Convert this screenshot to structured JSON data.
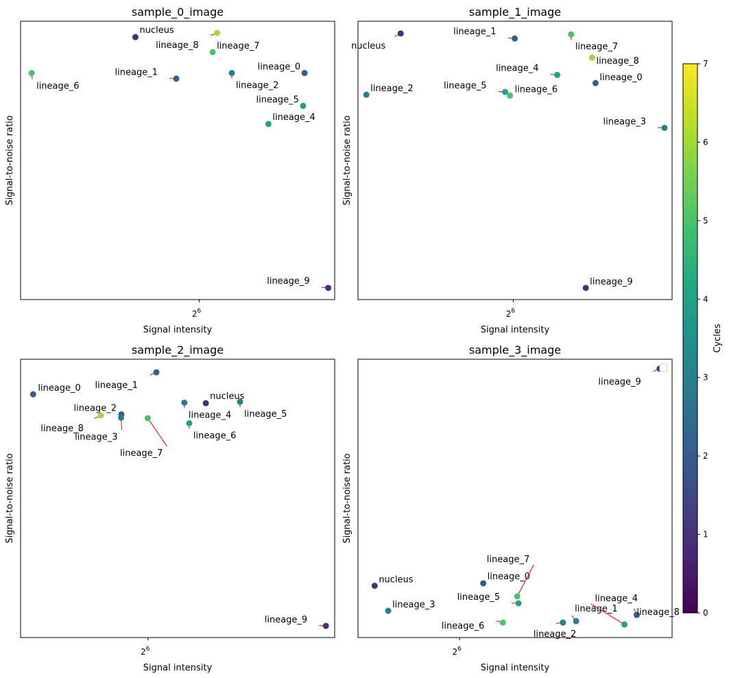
{
  "colorbar": {
    "label": "Cycles",
    "min": 0,
    "max": 7,
    "ticks": [
      "0",
      "1",
      "2",
      "3",
      "4",
      "5",
      "6",
      "7"
    ],
    "colormap": "viridis"
  },
  "chart_data": [
    {
      "type": "scatter",
      "title": "sample_0_image",
      "xlabel": "Signal intensity",
      "ylabel": "Signal-to-noise ratio",
      "xscale": "log2",
      "xlim": [
        23,
        139
      ],
      "ylim": [
        0,
        100
      ],
      "xticks": [
        {
          "value": 64,
          "base": "2",
          "exp": "6"
        }
      ],
      "legend": false,
      "points": [
        {
          "label": "nucleus",
          "x": 44.4,
          "y": 94.3,
          "cycle": 1
        },
        {
          "label": "lineage_0",
          "x": 117,
          "y": 81.4,
          "cycle": 2
        },
        {
          "label": "lineage_1",
          "x": 56.1,
          "y": 79.4,
          "cycle": 2
        },
        {
          "label": "lineage_2",
          "x": 77.1,
          "y": 81.4,
          "cycle": 3
        },
        {
          "label": "lineage_4",
          "x": 95.1,
          "y": 63.1,
          "cycle": 4
        },
        {
          "label": "lineage_5",
          "x": 116,
          "y": 69.6,
          "cycle": 4
        },
        {
          "label": "lineage_6",
          "x": 24.5,
          "y": 81.4,
          "cycle": 5
        },
        {
          "label": "lineage_7",
          "x": 69.1,
          "y": 88.9,
          "cycle": 5
        },
        {
          "label": "lineage_8",
          "x": 70.9,
          "y": 95.8,
          "cycle": 6
        },
        {
          "label": "lineage_9",
          "x": 134,
          "y": 4.2,
          "cycle": 1
        }
      ]
    },
    {
      "type": "scatter",
      "title": "sample_1_image",
      "xlabel": "Signal intensity",
      "ylabel": "Signal-to-noise ratio",
      "xscale": "log2",
      "xlim": [
        33,
        126
      ],
      "ylim": [
        0,
        100
      ],
      "xticks": [
        {
          "value": 64,
          "base": "2",
          "exp": "6"
        }
      ],
      "legend": false,
      "points": [
        {
          "label": "nucleus",
          "x": 39.6,
          "y": 95.6,
          "cycle": 1
        },
        {
          "label": "lineage_0",
          "x": 90.9,
          "y": 77.8,
          "cycle": 2
        },
        {
          "label": "lineage_1",
          "x": 64.4,
          "y": 93.8,
          "cycle": 2
        },
        {
          "label": "lineage_2",
          "x": 34.2,
          "y": 73.6,
          "cycle": 3
        },
        {
          "label": "lineage_3",
          "x": 122,
          "y": 61.7,
          "cycle": 3
        },
        {
          "label": "lineage_4",
          "x": 77.2,
          "y": 80.7,
          "cycle": 4
        },
        {
          "label": "lineage_5",
          "x": 61.8,
          "y": 74.6,
          "cycle": 4
        },
        {
          "label": "lineage_6",
          "x": 63.1,
          "y": 73.3,
          "cycle": 5
        },
        {
          "label": "lineage_7",
          "x": 81.9,
          "y": 95.3,
          "cycle": 5
        },
        {
          "label": "lineage_8",
          "x": 89.6,
          "y": 86.9,
          "cycle": 6
        },
        {
          "label": "lineage_9",
          "x": 87.2,
          "y": 4.2,
          "cycle": 1
        }
      ]
    },
    {
      "type": "scatter",
      "title": "sample_2_image",
      "xlabel": "Signal intensity",
      "ylabel": "Signal-to-noise ratio",
      "xscale": "log2",
      "xlim": [
        31,
        185
      ],
      "ylim": [
        0,
        100
      ],
      "xticks": [
        {
          "value": 64,
          "base": "2",
          "exp": "6"
        }
      ],
      "legend": false,
      "points": [
        {
          "label": "nucleus",
          "x": 88.9,
          "y": 84.2,
          "cycle": 1
        },
        {
          "label": "lineage_0",
          "x": 33.3,
          "y": 87.4,
          "cycle": 2
        },
        {
          "label": "lineage_1",
          "x": 67.1,
          "y": 95.3,
          "cycle": 2
        },
        {
          "label": "lineage_2",
          "x": 55.0,
          "y": 80.2,
          "cycle": 2
        },
        {
          "label": "lineage_3",
          "x": 54.9,
          "y": 79.0,
          "cycle": 3
        },
        {
          "label": "lineage_4",
          "x": 78.7,
          "y": 84.4,
          "cycle": 3
        },
        {
          "label": "lineage_5",
          "x": 108,
          "y": 84.7,
          "cycle": 3
        },
        {
          "label": "lineage_6",
          "x": 80.9,
          "y": 77.0,
          "cycle": 4
        },
        {
          "label": "lineage_7",
          "x": 63.9,
          "y": 78.8,
          "cycle": 5
        },
        {
          "label": "lineage_8",
          "x": 48.9,
          "y": 79.8,
          "cycle": 6
        },
        {
          "label": "lineage_9",
          "x": 176,
          "y": 4.2,
          "cycle": 1
        }
      ]
    },
    {
      "type": "scatter",
      "title": "sample_3_image",
      "xlabel": "Signal intensity",
      "ylabel": "Signal-to-noise ratio",
      "xscale": "log2",
      "xlim": [
        43,
        147
      ],
      "ylim": [
        0,
        100
      ],
      "xticks": [
        {
          "value": 64,
          "base": "2",
          "exp": "6"
        }
      ],
      "legend": true,
      "legend_entries": [],
      "legend_loc": "upper right",
      "points": [
        {
          "label": "nucleus",
          "x": 45.9,
          "y": 18.6,
          "cycle": 1
        },
        {
          "label": "lineage_0",
          "x": 70.2,
          "y": 19.5,
          "cycle": 2
        },
        {
          "label": "lineage_1",
          "x": 101,
          "y": 5.9,
          "cycle": 3
        },
        {
          "label": "lineage_2",
          "x": 95.9,
          "y": 5.4,
          "cycle": 3
        },
        {
          "label": "lineage_3",
          "x": 48.4,
          "y": 9.6,
          "cycle": 3
        },
        {
          "label": "lineage_4",
          "x": 122,
          "y": 4.7,
          "cycle": 4
        },
        {
          "label": "lineage_5",
          "x": 80.6,
          "y": 12.3,
          "cycle": 4
        },
        {
          "label": "lineage_6",
          "x": 75.8,
          "y": 5.4,
          "cycle": 5
        },
        {
          "label": "lineage_7",
          "x": 80.2,
          "y": 14.8,
          "cycle": 5
        },
        {
          "label": "lineage_8",
          "x": 128,
          "y": 8.1,
          "cycle": 2
        },
        {
          "label": "lineage_9",
          "x": 140,
          "y": 96.6,
          "cycle": 1
        }
      ]
    }
  ]
}
